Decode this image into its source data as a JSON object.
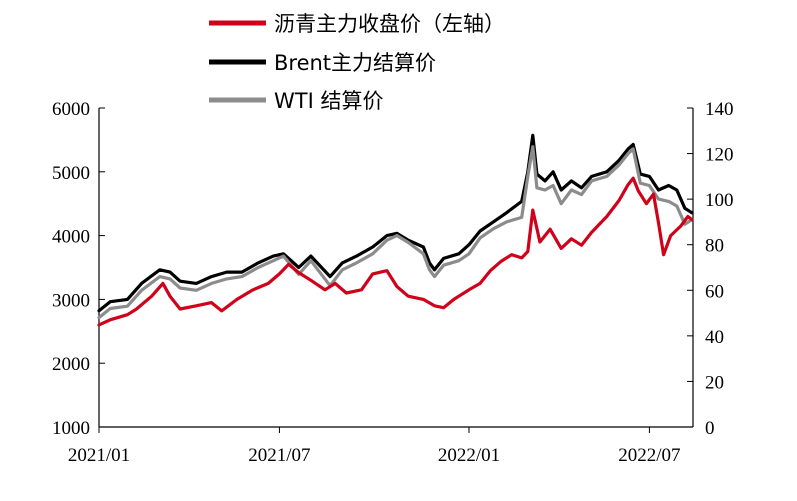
{
  "chart_data": {
    "type": "line",
    "title": "",
    "xlabel": "",
    "ylabel": "",
    "x_ticks": [
      "2021/01",
      "2021/07",
      "2022/01",
      "2022/07"
    ],
    "x_tick_dates": [
      "2021-01-04",
      "2021-07-01",
      "2022-01-04",
      "2022-07-01"
    ],
    "y_left": {
      "range": [
        1000,
        6000
      ],
      "ticks": [
        "1000",
        "2000",
        "3000",
        "4000",
        "5000",
        "6000"
      ]
    },
    "y_right": {
      "range": [
        0,
        140
      ],
      "ticks": [
        "0",
        "20",
        "40",
        "60",
        "80",
        "100",
        "120",
        "140"
      ]
    },
    "grid": false,
    "legend_position": "top-center",
    "series": [
      {
        "name": "沥青主力收盘价（左轴）",
        "axis": "left",
        "color": "#d0021b",
        "points": [
          [
            "2021-01-04",
            2600
          ],
          [
            "2021-01-15",
            2680
          ],
          [
            "2021-02-01",
            2760
          ],
          [
            "2021-02-10",
            2850
          ],
          [
            "2021-02-25",
            3050
          ],
          [
            "2021-03-08",
            3250
          ],
          [
            "2021-03-15",
            3050
          ],
          [
            "2021-03-25",
            2850
          ],
          [
            "2021-04-10",
            2900
          ],
          [
            "2021-04-25",
            2950
          ],
          [
            "2021-05-05",
            2820
          ],
          [
            "2021-05-20",
            3000
          ],
          [
            "2021-06-05",
            3150
          ],
          [
            "2021-06-20",
            3250
          ],
          [
            "2021-07-01",
            3400
          ],
          [
            "2021-07-10",
            3550
          ],
          [
            "2021-07-20",
            3420
          ],
          [
            "2021-08-01",
            3300
          ],
          [
            "2021-08-15",
            3150
          ],
          [
            "2021-08-25",
            3250
          ],
          [
            "2021-09-05",
            3100
          ],
          [
            "2021-09-20",
            3150
          ],
          [
            "2021-10-01",
            3400
          ],
          [
            "2021-10-15",
            3450
          ],
          [
            "2021-10-25",
            3200
          ],
          [
            "2021-11-05",
            3050
          ],
          [
            "2021-11-20",
            3000
          ],
          [
            "2021-12-01",
            2900
          ],
          [
            "2021-12-10",
            2870
          ],
          [
            "2021-12-20",
            3000
          ],
          [
            "2022-01-04",
            3150
          ],
          [
            "2022-01-15",
            3250
          ],
          [
            "2022-01-25",
            3450
          ],
          [
            "2022-02-05",
            3600
          ],
          [
            "2022-02-15",
            3700
          ],
          [
            "2022-02-25",
            3650
          ],
          [
            "2022-03-03",
            3750
          ],
          [
            "2022-03-08",
            4400
          ],
          [
            "2022-03-15",
            3900
          ],
          [
            "2022-03-25",
            4100
          ],
          [
            "2022-04-05",
            3800
          ],
          [
            "2022-04-15",
            3950
          ],
          [
            "2022-04-25",
            3850
          ],
          [
            "2022-05-05",
            4050
          ],
          [
            "2022-05-20",
            4300
          ],
          [
            "2022-06-01",
            4550
          ],
          [
            "2022-06-10",
            4800
          ],
          [
            "2022-06-15",
            4900
          ],
          [
            "2022-06-20",
            4700
          ],
          [
            "2022-06-28",
            4500
          ],
          [
            "2022-07-05",
            4650
          ],
          [
            "2022-07-10",
            4200
          ],
          [
            "2022-07-15",
            3700
          ],
          [
            "2022-07-22",
            4000
          ],
          [
            "2022-08-01",
            4150
          ],
          [
            "2022-08-08",
            4300
          ],
          [
            "2022-08-12",
            4250
          ]
        ]
      },
      {
        "name": "Brent主力结算价",
        "axis": "right",
        "color": "#000000",
        "points": [
          [
            "2021-01-04",
            51
          ],
          [
            "2021-01-15",
            55
          ],
          [
            "2021-02-01",
            56
          ],
          [
            "2021-02-15",
            63
          ],
          [
            "2021-03-05",
            69
          ],
          [
            "2021-03-15",
            68
          ],
          [
            "2021-03-25",
            64
          ],
          [
            "2021-04-10",
            63
          ],
          [
            "2021-04-25",
            66
          ],
          [
            "2021-05-10",
            68
          ],
          [
            "2021-05-25",
            68
          ],
          [
            "2021-06-10",
            72
          ],
          [
            "2021-06-25",
            75
          ],
          [
            "2021-07-05",
            76
          ],
          [
            "2021-07-20",
            70
          ],
          [
            "2021-08-01",
            75
          ],
          [
            "2021-08-20",
            66
          ],
          [
            "2021-09-01",
            72
          ],
          [
            "2021-09-15",
            75
          ],
          [
            "2021-10-01",
            79
          ],
          [
            "2021-10-15",
            84
          ],
          [
            "2021-10-25",
            85
          ],
          [
            "2021-11-05",
            82
          ],
          [
            "2021-11-20",
            79
          ],
          [
            "2021-11-26",
            72
          ],
          [
            "2021-12-01",
            69
          ],
          [
            "2021-12-10",
            74
          ],
          [
            "2021-12-25",
            76
          ],
          [
            "2022-01-04",
            80
          ],
          [
            "2022-01-15",
            86
          ],
          [
            "2022-01-28",
            90
          ],
          [
            "2022-02-10",
            94
          ],
          [
            "2022-02-25",
            99
          ],
          [
            "2022-03-03",
            112
          ],
          [
            "2022-03-08",
            128
          ],
          [
            "2022-03-12",
            111
          ],
          [
            "2022-03-20",
            108
          ],
          [
            "2022-03-28",
            112
          ],
          [
            "2022-04-05",
            104
          ],
          [
            "2022-04-15",
            108
          ],
          [
            "2022-04-25",
            105
          ],
          [
            "2022-05-05",
            110
          ],
          [
            "2022-05-20",
            112
          ],
          [
            "2022-06-01",
            117
          ],
          [
            "2022-06-10",
            122
          ],
          [
            "2022-06-15",
            124
          ],
          [
            "2022-06-22",
            111
          ],
          [
            "2022-07-01",
            110
          ],
          [
            "2022-07-10",
            104
          ],
          [
            "2022-07-20",
            106
          ],
          [
            "2022-07-28",
            104
          ],
          [
            "2022-08-05",
            96
          ],
          [
            "2022-08-12",
            94
          ]
        ]
      },
      {
        "name": "WTI 结算价",
        "axis": "right",
        "color": "#8c8c8c",
        "points": [
          [
            "2021-01-04",
            48
          ],
          [
            "2021-01-15",
            52
          ],
          [
            "2021-02-01",
            53
          ],
          [
            "2021-02-15",
            60
          ],
          [
            "2021-03-05",
            66
          ],
          [
            "2021-03-15",
            65
          ],
          [
            "2021-03-25",
            61
          ],
          [
            "2021-04-10",
            60
          ],
          [
            "2021-04-25",
            63
          ],
          [
            "2021-05-10",
            65
          ],
          [
            "2021-05-25",
            66
          ],
          [
            "2021-06-10",
            70
          ],
          [
            "2021-06-25",
            73
          ],
          [
            "2021-07-05",
            75
          ],
          [
            "2021-07-20",
            67
          ],
          [
            "2021-08-01",
            73
          ],
          [
            "2021-08-20",
            62
          ],
          [
            "2021-09-01",
            69
          ],
          [
            "2021-09-15",
            72
          ],
          [
            "2021-10-01",
            76
          ],
          [
            "2021-10-15",
            82
          ],
          [
            "2021-10-25",
            84
          ],
          [
            "2021-11-05",
            81
          ],
          [
            "2021-11-20",
            76
          ],
          [
            "2021-11-26",
            69
          ],
          [
            "2021-12-01",
            66
          ],
          [
            "2021-12-10",
            71
          ],
          [
            "2021-12-25",
            73
          ],
          [
            "2022-01-04",
            76
          ],
          [
            "2022-01-15",
            83
          ],
          [
            "2022-01-28",
            87
          ],
          [
            "2022-02-10",
            90
          ],
          [
            "2022-02-25",
            92
          ],
          [
            "2022-03-03",
            110
          ],
          [
            "2022-03-08",
            123
          ],
          [
            "2022-03-12",
            105
          ],
          [
            "2022-03-20",
            104
          ],
          [
            "2022-03-28",
            106
          ],
          [
            "2022-04-05",
            98
          ],
          [
            "2022-04-15",
            104
          ],
          [
            "2022-04-25",
            102
          ],
          [
            "2022-05-05",
            108
          ],
          [
            "2022-05-20",
            110
          ],
          [
            "2022-06-01",
            115
          ],
          [
            "2022-06-10",
            120
          ],
          [
            "2022-06-15",
            122
          ],
          [
            "2022-06-22",
            107
          ],
          [
            "2022-07-01",
            106
          ],
          [
            "2022-07-10",
            100
          ],
          [
            "2022-07-20",
            99
          ],
          [
            "2022-07-28",
            97
          ],
          [
            "2022-08-05",
            89
          ],
          [
            "2022-08-12",
            91
          ]
        ]
      }
    ]
  }
}
